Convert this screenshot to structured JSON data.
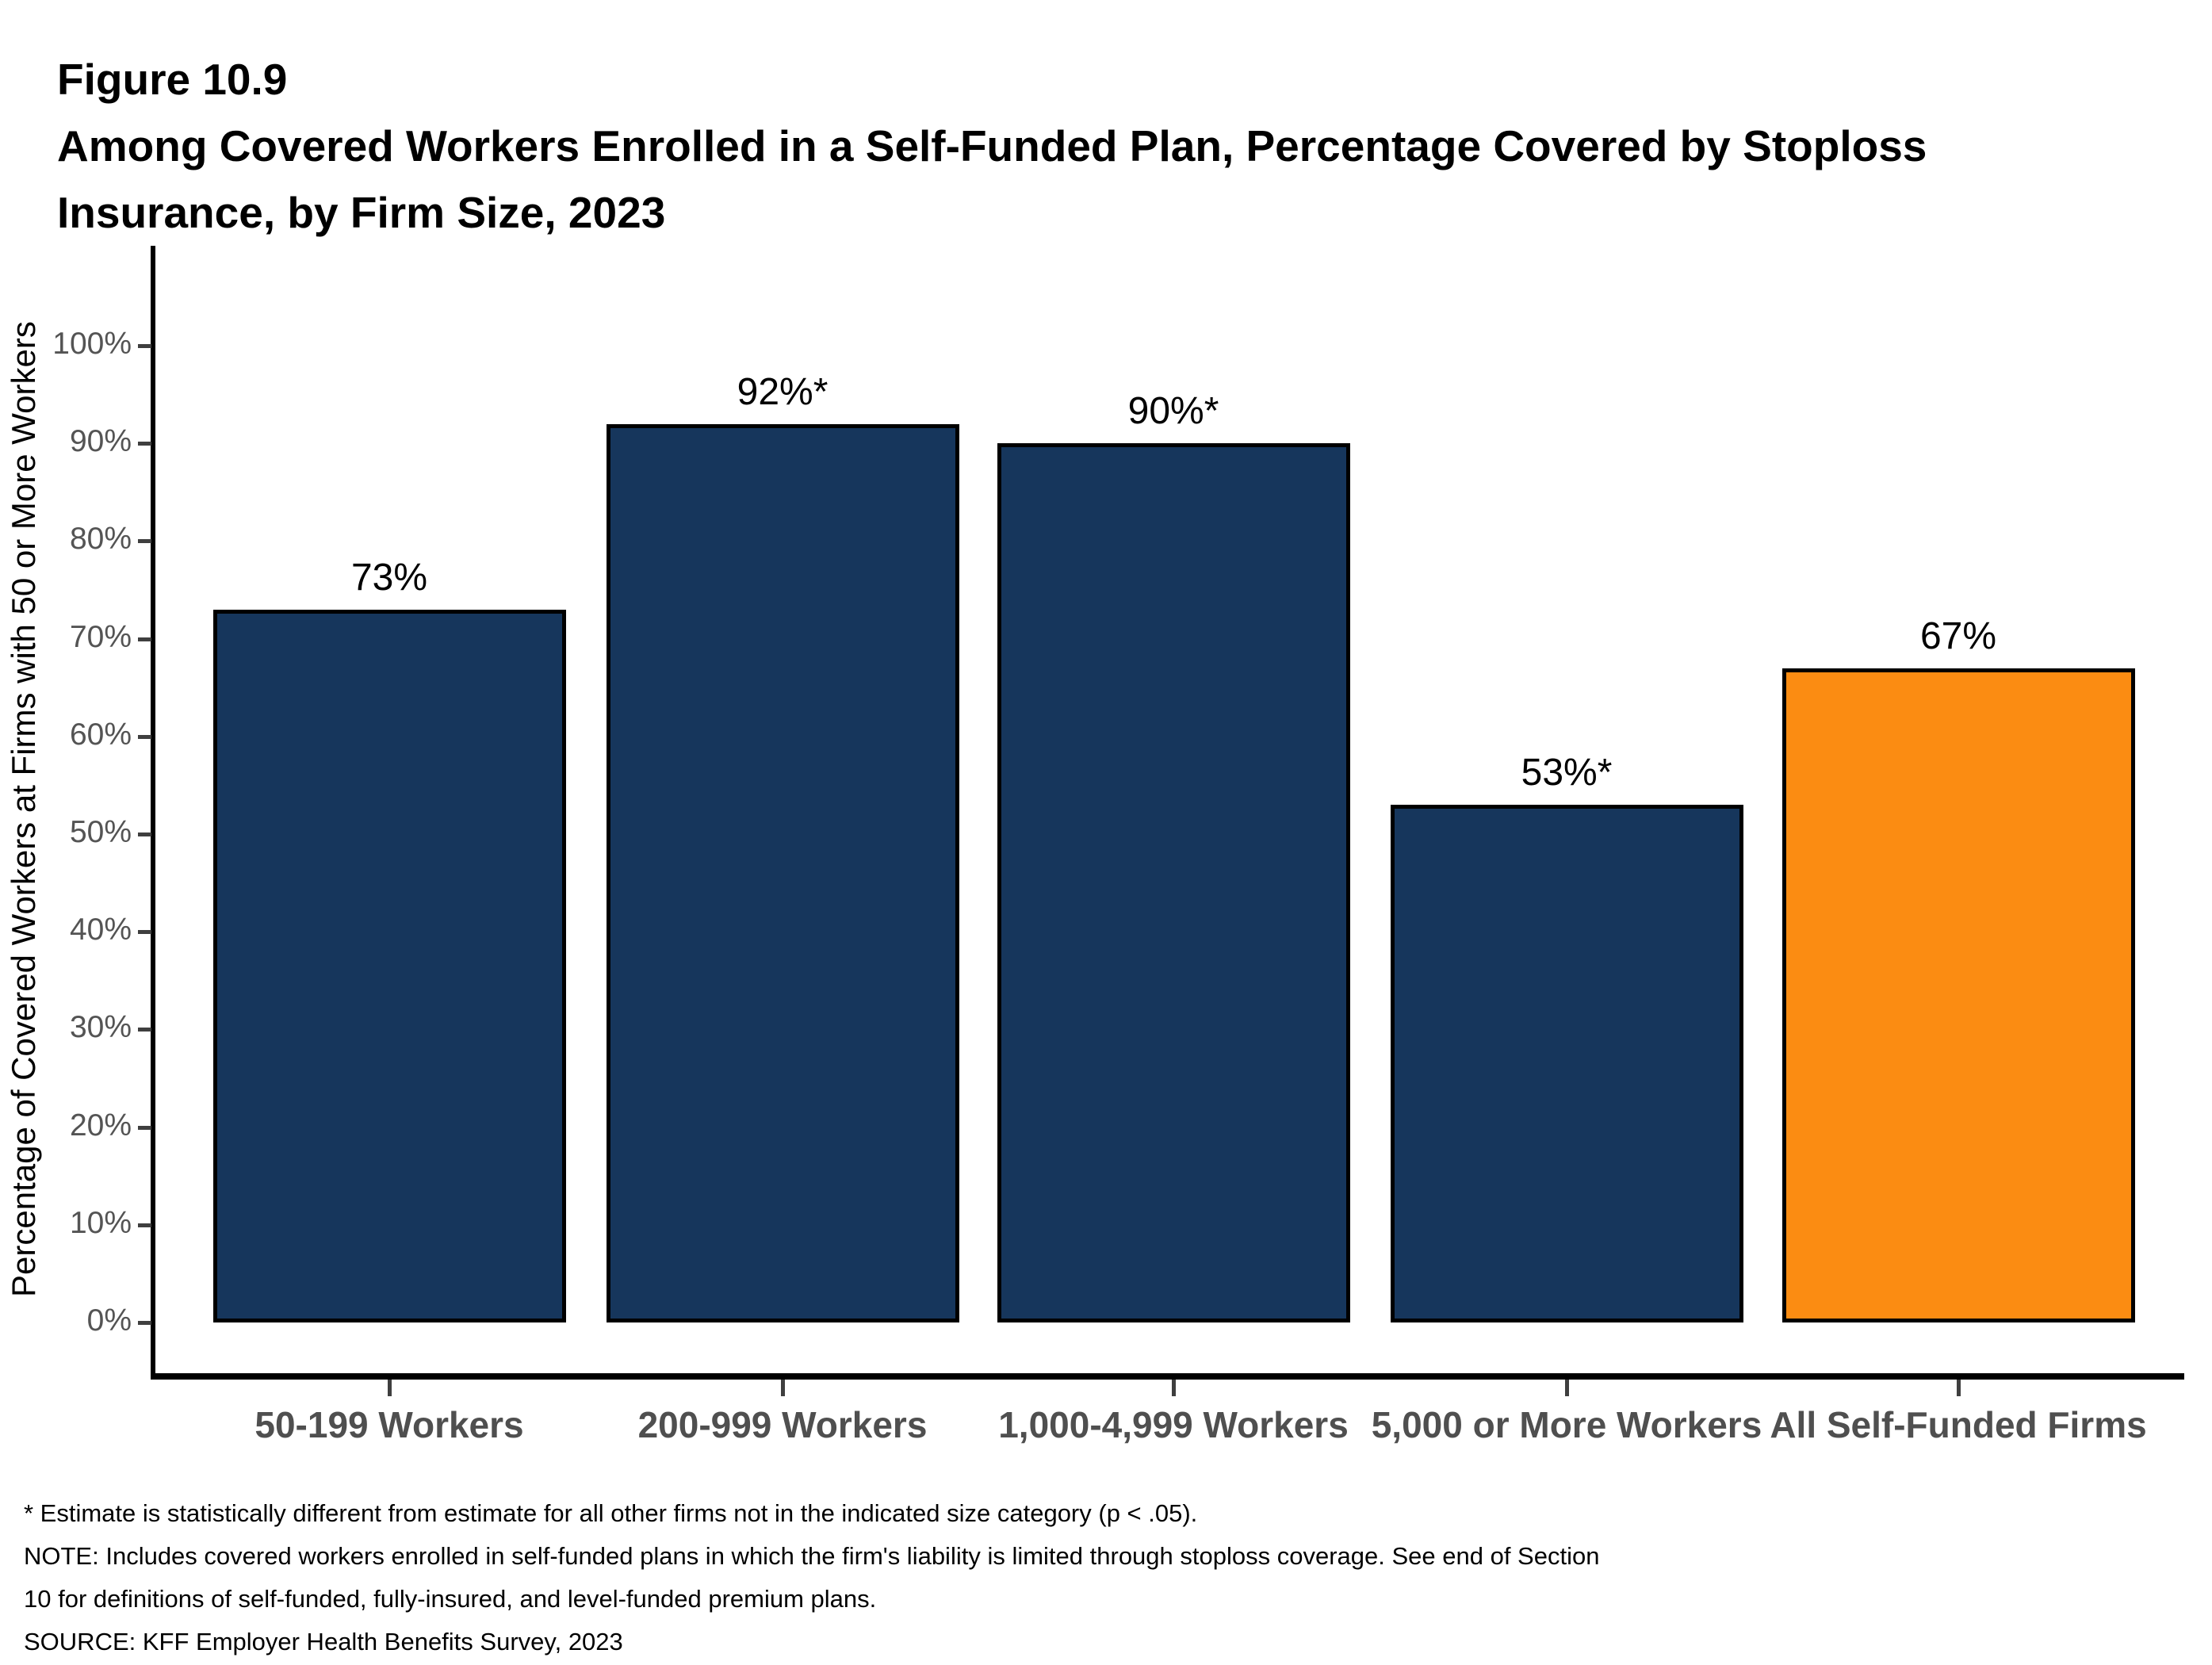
{
  "figure": {
    "label": "Figure 10.9",
    "title": "Among Covered Workers Enrolled in a Self-Funded Plan, Percentage Covered by Stoploss Insurance, by Firm Size, 2023",
    "title_lines": [
      "Among Covered Workers Enrolled in a Self-Funded Plan, Percentage Covered by Stoploss",
      "Insurance, by Firm Size, 2023"
    ]
  },
  "chart_data": {
    "type": "bar",
    "title": "Among Covered Workers Enrolled in a Self-Funded Plan, Percentage Covered by Stoploss Insurance, by Firm Size, 2023",
    "categories": [
      "50-199 Workers",
      "200-999 Workers",
      "1,000-4,999 Workers",
      "5,000 or More Workers",
      "All Self-Funded Firms"
    ],
    "values": [
      73,
      92,
      90,
      53,
      67
    ],
    "value_labels": [
      "73%",
      "92%*",
      "90%*",
      "53%*",
      "67%"
    ],
    "bar_colors": [
      "#16365C",
      "#16365C",
      "#16365C",
      "#16365C",
      "#FB8C12"
    ],
    "xlabel": "",
    "ylabel": "Percentage of Covered Workers at Firms with 50 or More Workers",
    "ylim": [
      0,
      100
    ],
    "y_tick_labels": [
      "0%",
      "10%",
      "20%",
      "30%",
      "40%",
      "50%",
      "60%",
      "70%",
      "80%",
      "90%",
      "100%"
    ],
    "grid": false,
    "legend": false,
    "accent_colors": {
      "navy": "#16365C",
      "orange": "#FB8C12"
    }
  },
  "footnotes": {
    "star_note": "* Estimate is statistically different from estimate for all other firms not in the indicated size category (p < .05).",
    "note_lines": [
      "NOTE: Includes covered workers enrolled in self-funded plans in which the firm's liability is limited through stoploss coverage. See end of Section",
      "10 for definitions of self-funded, fully-insured, and level-funded premium plans."
    ],
    "source": "SOURCE: KFF Employer Health Benefits Survey, 2023"
  }
}
